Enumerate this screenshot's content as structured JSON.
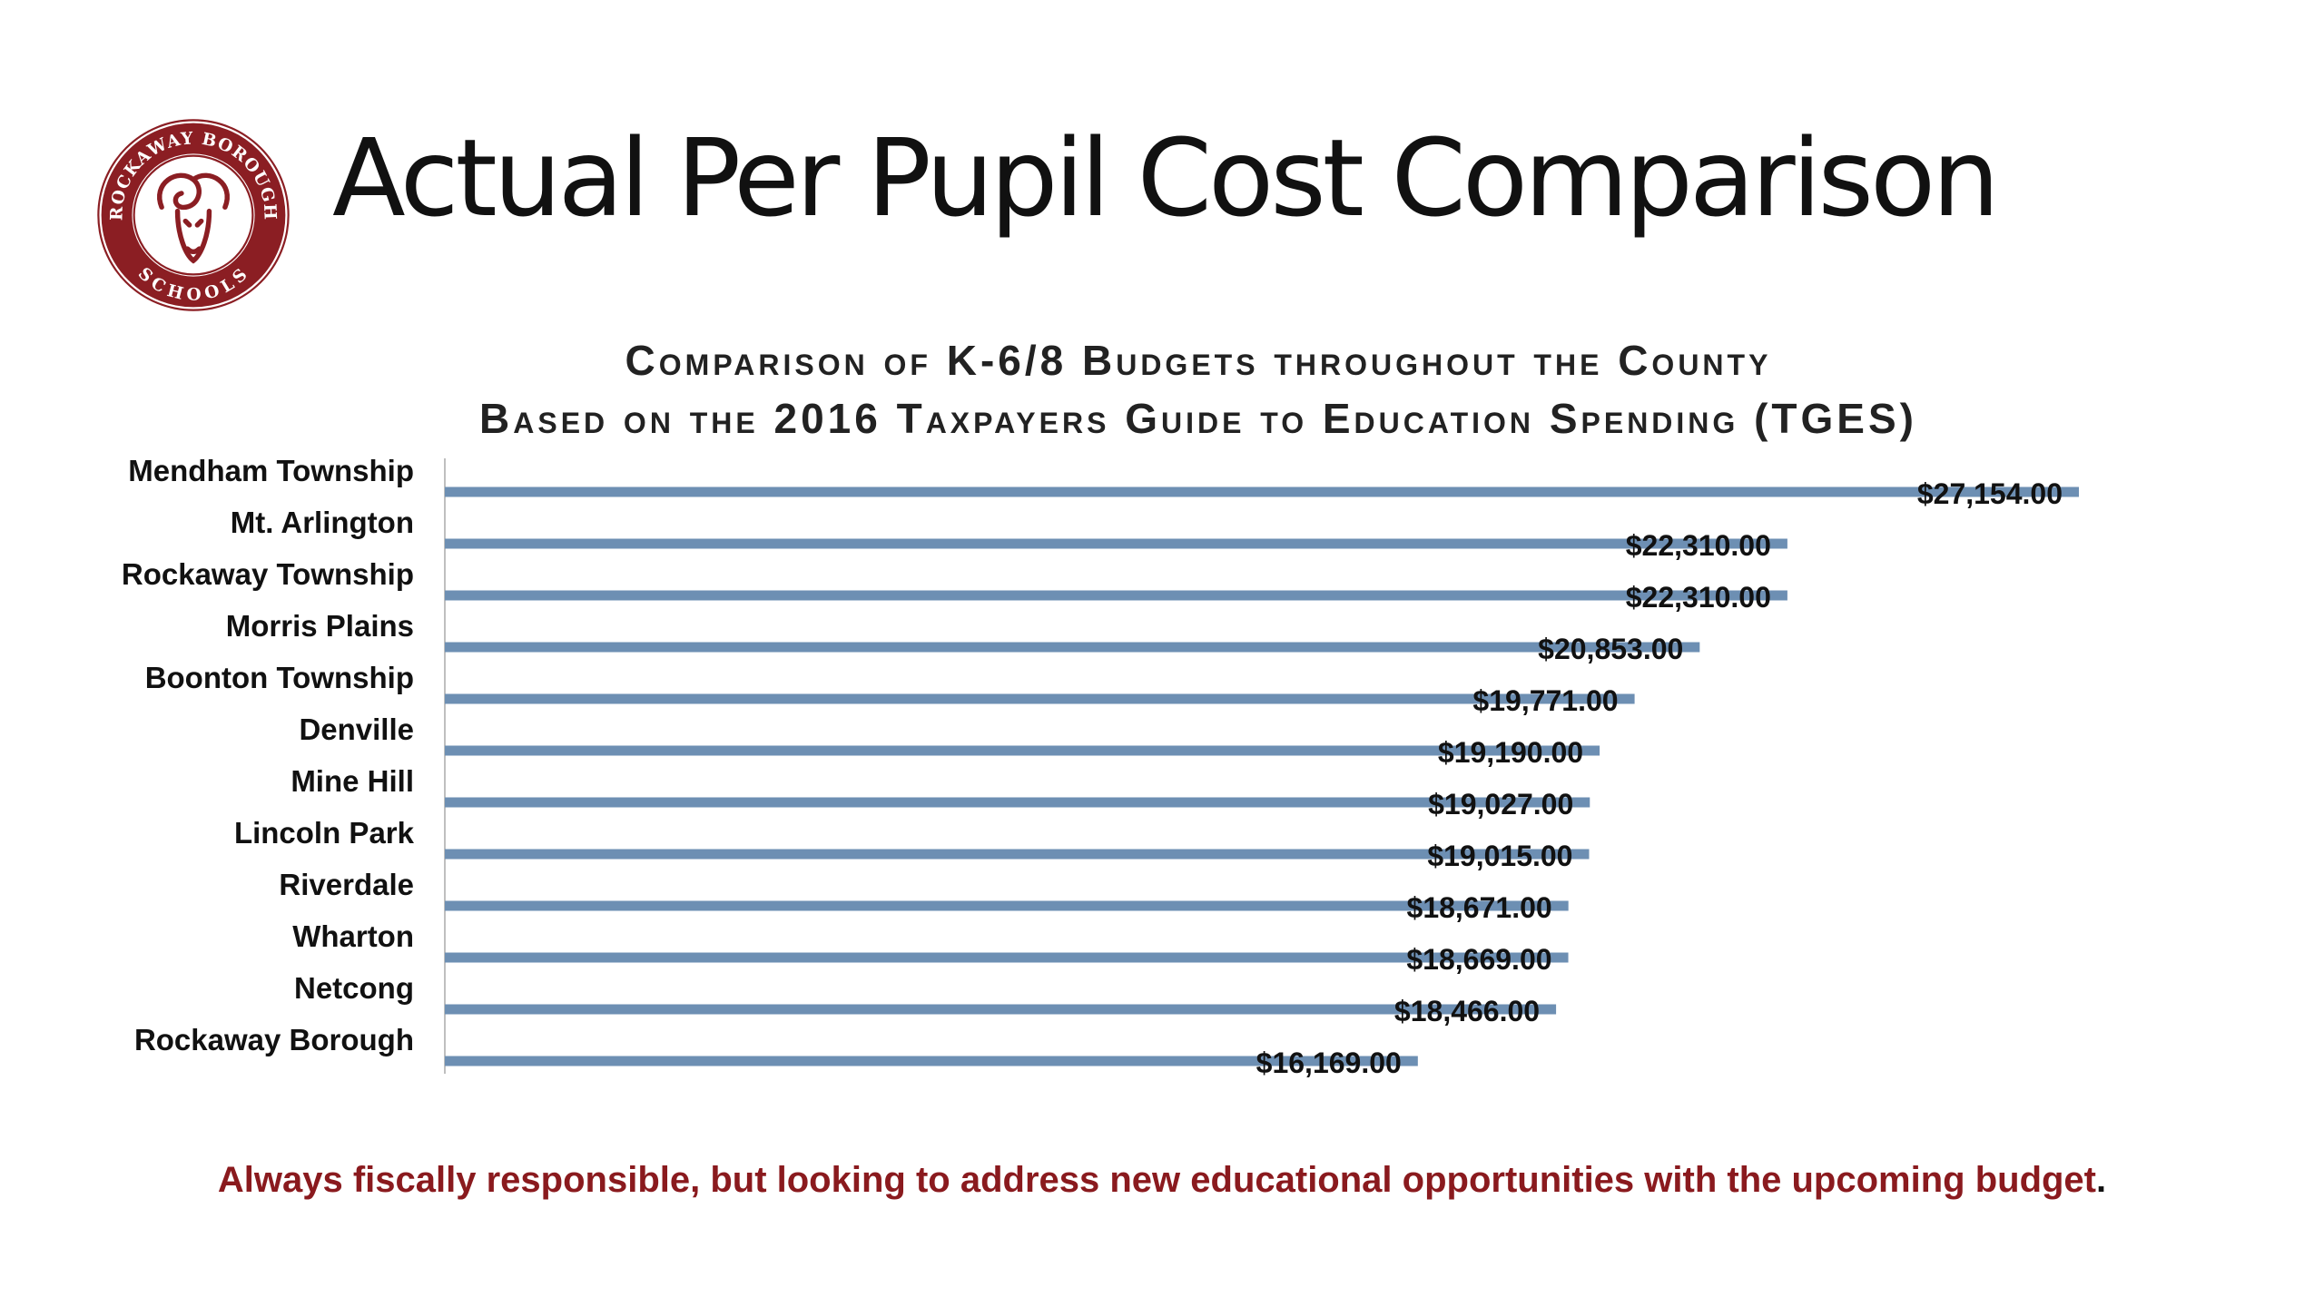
{
  "slide": {
    "title": "Actual Per Pupil Cost Comparison",
    "footer": "Always fiscally responsible, but looking to address new educational opportunities with the upcoming budget",
    "footer_end": "."
  },
  "logo": {
    "top_text": "ROCKAWAY BOROUGH",
    "bottom_text": "SCHOOLS",
    "color": "#8b1e23"
  },
  "chart_data": {
    "type": "bar",
    "orientation": "horizontal",
    "title_line1": "Comparison of K-6/8 Budgets throughout the County",
    "title_line2": "Based on the 2016 Taxpayers Guide to Education Spending (TGES)",
    "xlabel": "",
    "ylabel": "",
    "grid": false,
    "legend": "none",
    "bar_color": "#6d8fb3",
    "categories": [
      "Mendham Township",
      "Mt. Arlington",
      "Rockaway Township",
      "Morris Plains",
      "Boonton Township",
      "Denville",
      "Mine Hill",
      "Lincoln Park",
      "Riverdale",
      "Wharton",
      "Netcong",
      "Rockaway Borough"
    ],
    "values": [
      27154,
      22310,
      22310,
      20853,
      19771,
      19190,
      19027,
      19015,
      18671,
      18669,
      18466,
      16169
    ],
    "labels": [
      "$27,154.00",
      "$22,310.00",
      "$22,310.00",
      "$20,853.00",
      "$19,771.00",
      "$19,190.00",
      "$19,027.00",
      "$19,015.00",
      "$18,671.00",
      "$18,669.00",
      "$18,466.00",
      "$16,169.00"
    ],
    "xlim": [
      0,
      27154
    ]
  }
}
